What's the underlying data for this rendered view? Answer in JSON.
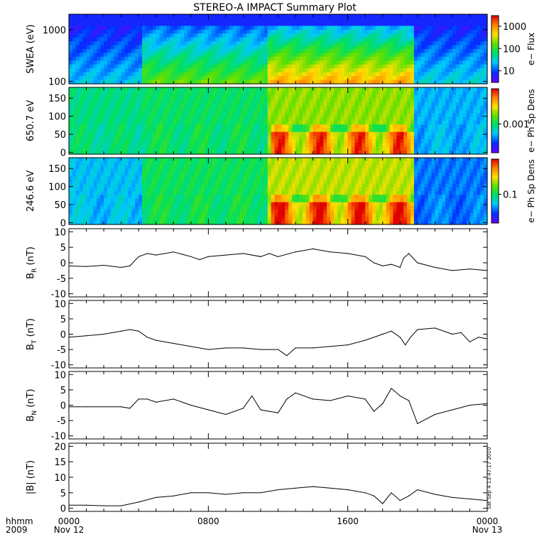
{
  "title": "STEREO-A IMPACT Summary Plot",
  "footer": {
    "hhmm_label": "hhmm",
    "year_label": "2009",
    "ticks": [
      "0000",
      "0800",
      "1600",
      "0000"
    ],
    "dates": [
      "Nov 12",
      "",
      "",
      "Nov 13"
    ]
  },
  "timestamp": "Sat Sep  4 13:47:17 2010",
  "chart_data": [
    {
      "type": "heatmap",
      "name": "SWEA electron flux spectrogram",
      "ylabel": "SWEA (eV)",
      "y_scale": "log",
      "ylim": [
        90,
        2000
      ],
      "yticks": [
        "1000",
        "100"
      ],
      "ytick_values": [
        1000,
        100
      ],
      "colorbar": {
        "label": "e−  Flux",
        "scale": "log",
        "ticks": [
          "1000",
          "100",
          "10"
        ],
        "tick_values": [
          1000,
          100,
          10
        ],
        "range": [
          3,
          3000
        ]
      },
      "x_hours": [
        0,
        3,
        4.5,
        8,
        12,
        14,
        16,
        19,
        20,
        21,
        24
      ],
      "regions": [
        {
          "x": [
            0,
            4.3
          ],
          "level": 0.28
        },
        {
          "x": [
            4.3,
            11.5
          ],
          "level": 0.52
        },
        {
          "x": [
            11.5,
            19.8
          ],
          "level": 0.72
        },
        {
          "x": [
            19.8,
            24
          ],
          "level": 0.3
        }
      ]
    },
    {
      "type": "heatmap",
      "name": "650.7 eV pitch-angle distribution",
      "ylabel": "650.7 eV",
      "ylim": [
        -5,
        180
      ],
      "yticks": [
        "150",
        "100",
        "50",
        "0"
      ],
      "ytick_values": [
        150,
        100,
        50,
        0
      ],
      "colorbar": {
        "label": "e−  Ph Sp Dens",
        "scale": "log",
        "ticks": [
          "0.001"
        ],
        "tick_values": [
          0.001
        ]
      },
      "regions": [
        {
          "x": [
            0,
            4.3
          ],
          "level": 0.42
        },
        {
          "x": [
            4.3,
            11.5
          ],
          "level": 0.45
        },
        {
          "x": [
            11.5,
            19.8
          ],
          "level": 0.62
        },
        {
          "x": [
            19.8,
            24
          ],
          "level": 0.28
        }
      ]
    },
    {
      "type": "heatmap",
      "name": "246.6 eV pitch-angle distribution",
      "ylabel": "246.6 eV",
      "ylim": [
        -5,
        180
      ],
      "yticks": [
        "150",
        "100",
        "50",
        "0"
      ],
      "ytick_values": [
        150,
        100,
        50,
        0
      ],
      "colorbar": {
        "label": "e−  Ph Sp Dens",
        "scale": "log",
        "ticks": [
          "0.1"
        ],
        "tick_values": [
          0.1
        ]
      },
      "regions": [
        {
          "x": [
            0,
            4.3
          ],
          "level": 0.3
        },
        {
          "x": [
            4.3,
            11.5
          ],
          "level": 0.46
        },
        {
          "x": [
            11.5,
            19.8
          ],
          "level": 0.66
        },
        {
          "x": [
            19.8,
            24
          ],
          "level": 0.22
        }
      ]
    },
    {
      "type": "line",
      "name": "BR",
      "ylabel": "B",
      "ylabel_sub": "R",
      "ylabel_unit": "(nT)",
      "ylim": [
        -11,
        11
      ],
      "yticks": [
        "10",
        "5",
        "0",
        "-5",
        "-10"
      ],
      "ytick_values": [
        10,
        5,
        0,
        -5,
        -10
      ],
      "x_hours": [
        0,
        1,
        2,
        3,
        3.5,
        4,
        4.5,
        5,
        6,
        7,
        7.5,
        8,
        9,
        10,
        11,
        11.5,
        12,
        13,
        14,
        15,
        16,
        17,
        17.5,
        18,
        18.5,
        19,
        19.2,
        19.5,
        20,
        21,
        22,
        23,
        24
      ],
      "values": [
        -1,
        -1.2,
        -0.8,
        -1.5,
        -1,
        2,
        3,
        2.5,
        3.5,
        2,
        1,
        2,
        2.5,
        3,
        2,
        3,
        2,
        3.5,
        4.5,
        3.5,
        3,
        2,
        0,
        -1,
        -0.5,
        -1.5,
        1.5,
        3,
        0,
        -1.5,
        -2.5,
        -2,
        -2.5
      ]
    },
    {
      "type": "line",
      "name": "BT",
      "ylabel": "B",
      "ylabel_sub": "T",
      "ylabel_unit": "(nT)",
      "ylim": [
        -11,
        11
      ],
      "yticks": [
        "10",
        "5",
        "0",
        "-5",
        "-10"
      ],
      "ytick_values": [
        10,
        5,
        0,
        -5,
        -10
      ],
      "x_hours": [
        0,
        1,
        2,
        3,
        3.5,
        4,
        4.5,
        5,
        6,
        7,
        8,
        9,
        10,
        11,
        12,
        12.5,
        13,
        14,
        15,
        16,
        17,
        18,
        18.5,
        19,
        19.3,
        19.6,
        20,
        21,
        22,
        22.5,
        23,
        23.5,
        24
      ],
      "values": [
        -1,
        -0.5,
        0,
        1,
        1.5,
        1,
        -1,
        -2,
        -3,
        -4,
        -5,
        -4.5,
        -4.5,
        -5,
        -5,
        -7,
        -4.5,
        -4.5,
        -4,
        -3.5,
        -2,
        0,
        1,
        -1,
        -3.5,
        -1,
        1.5,
        2,
        0,
        0.5,
        -2.5,
        -1,
        -1.5
      ]
    },
    {
      "type": "line",
      "name": "BN",
      "ylabel": "B",
      "ylabel_sub": "N",
      "ylabel_unit": "(nT)",
      "ylim": [
        -11,
        11
      ],
      "yticks": [
        "10",
        "5",
        "0",
        "-5",
        "-10"
      ],
      "ytick_values": [
        10,
        5,
        0,
        -5,
        -10
      ],
      "x_hours": [
        0,
        1,
        2,
        3,
        3.5,
        4,
        4.5,
        5,
        6,
        7,
        8,
        9,
        10,
        10.5,
        11,
        11.5,
        12,
        12.5,
        13,
        14,
        15,
        16,
        17,
        17.5,
        18,
        18.5,
        19,
        19.5,
        20,
        21,
        22,
        23,
        24
      ],
      "values": [
        -0.5,
        -0.5,
        -0.5,
        -0.5,
        -1,
        2,
        2,
        1,
        2,
        0,
        -1.5,
        -3,
        -1,
        3,
        -1.5,
        -2,
        -2.5,
        2,
        4,
        2,
        1.5,
        3,
        2,
        -2,
        0.5,
        5.5,
        3,
        1.5,
        -6,
        -3,
        -1.5,
        0,
        0.5
      ]
    },
    {
      "type": "line",
      "name": "|B|",
      "ylabel": "|B|",
      "ylabel_unit": "(nT)",
      "ylim": [
        -1,
        21
      ],
      "yticks": [
        "20",
        "15",
        "10",
        "5",
        "0"
      ],
      "ytick_values": [
        20,
        15,
        10,
        5,
        0
      ],
      "x_hours": [
        0,
        1,
        2,
        3,
        4,
        5,
        6,
        7,
        8,
        9,
        10,
        11,
        12,
        13,
        14,
        15,
        16,
        17,
        17.5,
        18,
        18.5,
        19,
        19.5,
        20,
        21,
        22,
        23,
        24
      ],
      "values": [
        1,
        1,
        0.8,
        0.8,
        2,
        3.5,
        4,
        5,
        5,
        4.5,
        5,
        5,
        6,
        6.5,
        7,
        6.5,
        6,
        5,
        4,
        1.5,
        5,
        2.5,
        4,
        6,
        4.5,
        3.5,
        3,
        2.5
      ]
    }
  ]
}
